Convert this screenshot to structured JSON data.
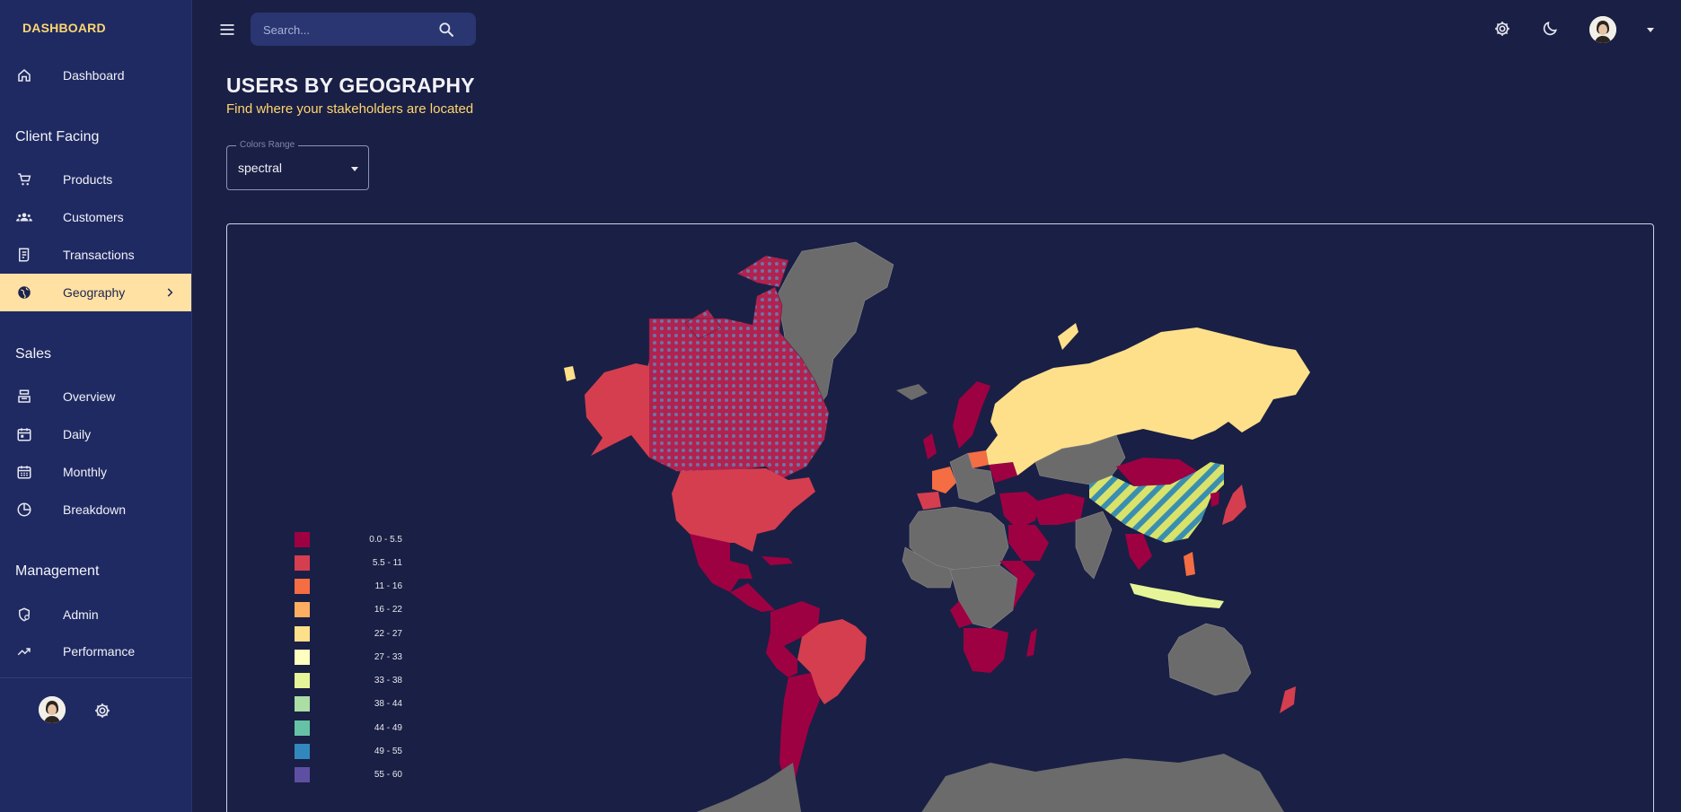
{
  "app": {
    "brand": "DASHBOARD"
  },
  "sidebar": {
    "items_top": [
      {
        "label": "Dashboard",
        "icon": "home-icon"
      }
    ],
    "sections": [
      {
        "title": "Client Facing",
        "items": [
          {
            "label": "Products",
            "icon": "cart-icon"
          },
          {
            "label": "Customers",
            "icon": "groups-icon"
          },
          {
            "label": "Transactions",
            "icon": "receipt-icon"
          },
          {
            "label": "Geography",
            "icon": "globe-icon",
            "active": true
          }
        ]
      },
      {
        "title": "Sales",
        "items": [
          {
            "label": "Overview",
            "icon": "point-of-sale-icon"
          },
          {
            "label": "Daily",
            "icon": "calendar-today-icon"
          },
          {
            "label": "Monthly",
            "icon": "calendar-month-icon"
          },
          {
            "label": "Breakdown",
            "icon": "pie-chart-icon"
          }
        ]
      },
      {
        "title": "Management",
        "items": [
          {
            "label": "Admin",
            "icon": "admin-icon"
          },
          {
            "label": "Performance",
            "icon": "trending-up-icon"
          }
        ]
      }
    ]
  },
  "topbar": {
    "search_placeholder": "Search..."
  },
  "header": {
    "title": "USERS BY GEOGRAPHY",
    "subtitle": "Find where your stakeholders are located"
  },
  "colors_range": {
    "label": "Colors Range",
    "value": "spectral"
  },
  "legend": [
    {
      "label": "0.0 - 5.5",
      "color": "#9e0142"
    },
    {
      "label": "5.5 - 11",
      "color": "#d53e4f"
    },
    {
      "label": "11 - 16",
      "color": "#f46d43"
    },
    {
      "label": "16 - 22",
      "color": "#fdae61"
    },
    {
      "label": "22 - 27",
      "color": "#fee08b"
    },
    {
      "label": "27 - 33",
      "color": "#ffffbf"
    },
    {
      "label": "33 - 38",
      "color": "#e6f598"
    },
    {
      "label": "38 - 44",
      "color": "#abdda4"
    },
    {
      "label": "44 - 49",
      "color": "#66c2a5"
    },
    {
      "label": "49 - 55",
      "color": "#3288bd"
    },
    {
      "label": "55 - 60",
      "color": "#5e4fa2"
    }
  ],
  "theme": {
    "background": "#1a1f45",
    "sidebar": "#1f2a63",
    "accent": "#ffd66e",
    "active_item_bg": "#ffe1a3",
    "no_data": "#6b6b6b"
  }
}
